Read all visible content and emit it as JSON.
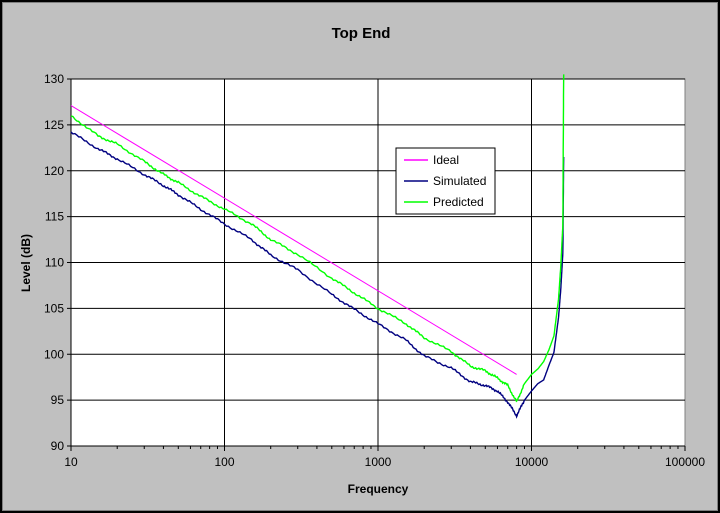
{
  "chart_data": {
    "type": "line",
    "title": "Top End",
    "xlabel": "Frequency",
    "ylabel": "Level (dB)",
    "x_scale": "log",
    "xlim": [
      10,
      100000
    ],
    "ylim": [
      90,
      130
    ],
    "x_ticks": [
      "10",
      "100",
      "1000",
      "10000",
      "100000"
    ],
    "y_ticks": [
      "90",
      "95",
      "100",
      "105",
      "110",
      "115",
      "120",
      "125",
      "130"
    ],
    "grid": true,
    "legend_position": "center-right",
    "series": [
      {
        "name": "Ideal",
        "color": "#ff00ff",
        "x": [
          10,
          8000
        ],
        "y": [
          127.1,
          97.8
        ]
      },
      {
        "name": "Simulated",
        "color": "#000080",
        "x": [
          10,
          15,
          20,
          30,
          40,
          50,
          70,
          100,
          150,
          200,
          300,
          500,
          700,
          1000,
          1500,
          2000,
          3000,
          4000,
          5000,
          6000,
          7000,
          8000,
          9000,
          10000,
          11000,
          12000,
          13000,
          14000,
          15000,
          15500,
          16000,
          16200
        ],
        "y": [
          124.2,
          122.4,
          121.3,
          119.6,
          118.4,
          117.4,
          115.8,
          114.2,
          112.5,
          110.8,
          109.2,
          106.5,
          104.9,
          103.3,
          101.6,
          99.8,
          98.5,
          97.0,
          96.6,
          96.0,
          94.8,
          93.3,
          95.0,
          96.0,
          96.8,
          97.2,
          98.8,
          100.2,
          104.0,
          107.0,
          111.0,
          121.5
        ]
      },
      {
        "name": "Predicted",
        "color": "#00ff00",
        "x": [
          10,
          15,
          20,
          30,
          40,
          50,
          70,
          100,
          150,
          200,
          300,
          500,
          700,
          1000,
          1500,
          2000,
          3000,
          4000,
          5000,
          6000,
          7000,
          8000,
          9000,
          10000,
          11000,
          12000,
          13000,
          14000,
          15000,
          15500,
          16000,
          16200
        ],
        "y": [
          126.0,
          123.8,
          122.9,
          121.0,
          119.6,
          118.7,
          117.2,
          115.8,
          114.2,
          112.5,
          110.9,
          108.3,
          106.7,
          105.0,
          103.4,
          101.8,
          100.3,
          98.7,
          98.2,
          97.4,
          96.6,
          94.8,
          96.8,
          97.8,
          98.4,
          99.2,
          100.5,
          102.0,
          106.0,
          109.5,
          114.0,
          130.5
        ]
      }
    ]
  }
}
